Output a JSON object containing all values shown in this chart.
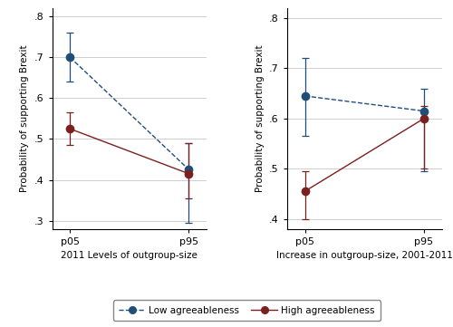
{
  "left_panel": {
    "xlabel": "2011 Levels of outgroup-size",
    "ylabel": "Probability of supporting Brexit",
    "xtick_labels": [
      "p05",
      "p95"
    ],
    "ylim": [
      0.28,
      0.82
    ],
    "yticks": [
      0.3,
      0.4,
      0.5,
      0.6,
      0.7,
      0.8
    ],
    "ytick_labels": [
      ".3",
      ".4",
      ".5",
      ".6",
      ".7",
      ".8"
    ],
    "low_agree": {
      "y": [
        0.7,
        0.425
      ],
      "yerr_up": [
        0.06,
        0.065
      ],
      "yerr_dn": [
        0.06,
        0.13
      ]
    },
    "high_agree": {
      "y": [
        0.525,
        0.415
      ],
      "yerr_up": [
        0.04,
        0.075
      ],
      "yerr_dn": [
        0.04,
        0.06
      ]
    }
  },
  "right_panel": {
    "xlabel": "Increase in outgroup-size, 2001-2011",
    "ylabel": "Probability of supporting Brexit",
    "xtick_labels": [
      "p05",
      "p95"
    ],
    "ylim": [
      0.38,
      0.82
    ],
    "yticks": [
      0.4,
      0.5,
      0.6,
      0.7,
      0.8
    ],
    "ytick_labels": [
      ".4",
      ".5",
      ".6",
      ".7",
      ".8"
    ],
    "low_agree": {
      "y": [
        0.645,
        0.615
      ],
      "yerr_up": [
        0.075,
        0.045
      ],
      "yerr_dn": [
        0.08,
        0.12
      ]
    },
    "high_agree": {
      "y": [
        0.455,
        0.6
      ],
      "yerr_up": [
        0.04,
        0.025
      ],
      "yerr_dn": [
        0.055,
        0.1
      ]
    }
  },
  "low_color": "#1f4e79",
  "high_color": "#7b2020",
  "legend_labels": [
    "Low agreeableness",
    "High agreeableness"
  ],
  "grid_color": "#c8c8c8",
  "background_color": "#ffffff",
  "capsize": 3,
  "markersize": 6,
  "linewidth": 1.0,
  "elinewidth": 0.9
}
